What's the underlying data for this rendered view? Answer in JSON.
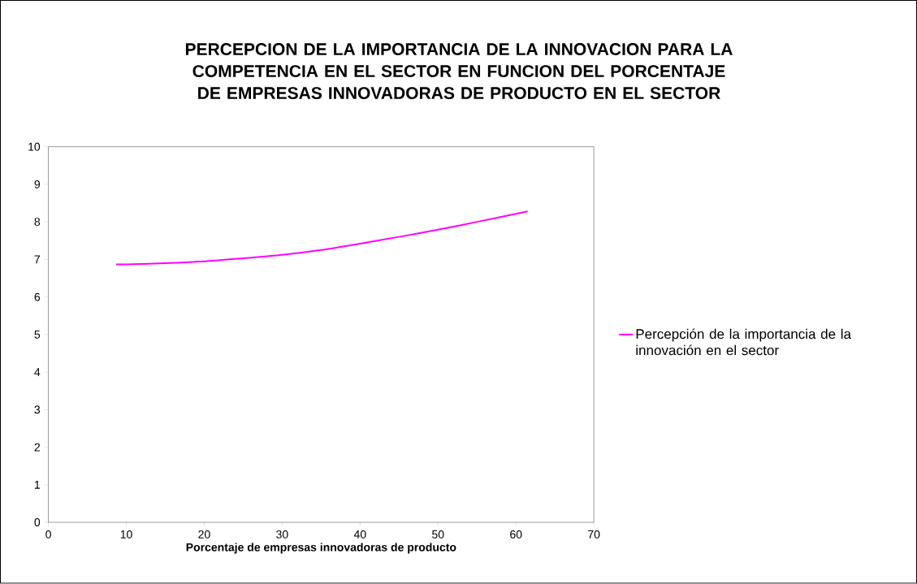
{
  "chart_data": {
    "type": "line",
    "title": "PERCEPCION DE LA IMPORTANCIA DE LA INNOVACION PARA LA COMPETENCIA EN EL SECTOR EN FUNCION DEL PORCENTAJE DE EMPRESAS INNOVADORAS DE PRODUCTO EN EL SECTOR",
    "xlabel": "Porcentaje de empresas innovadoras de producto",
    "x": [
      8.7,
      10,
      15,
      20,
      25,
      30,
      35,
      40,
      45,
      50,
      55,
      61.5
    ],
    "series": [
      {
        "name": "Percepción de la importancia de la innovación en el sector",
        "color": "#ff00ff",
        "values": [
          6.87,
          6.87,
          6.9,
          6.95,
          7.03,
          7.12,
          7.25,
          7.42,
          7.6,
          7.79,
          8.0,
          8.28
        ]
      }
    ],
    "xlim": [
      0,
      70
    ],
    "xticks": [
      0,
      10,
      20,
      30,
      40,
      50,
      60,
      70
    ],
    "ylim": [
      0,
      10
    ],
    "yticks": [
      0,
      1,
      2,
      3,
      4,
      5,
      6,
      7,
      8,
      9,
      10
    ],
    "grid": false,
    "legend": "right",
    "marker": "none",
    "line_style": "solid"
  }
}
